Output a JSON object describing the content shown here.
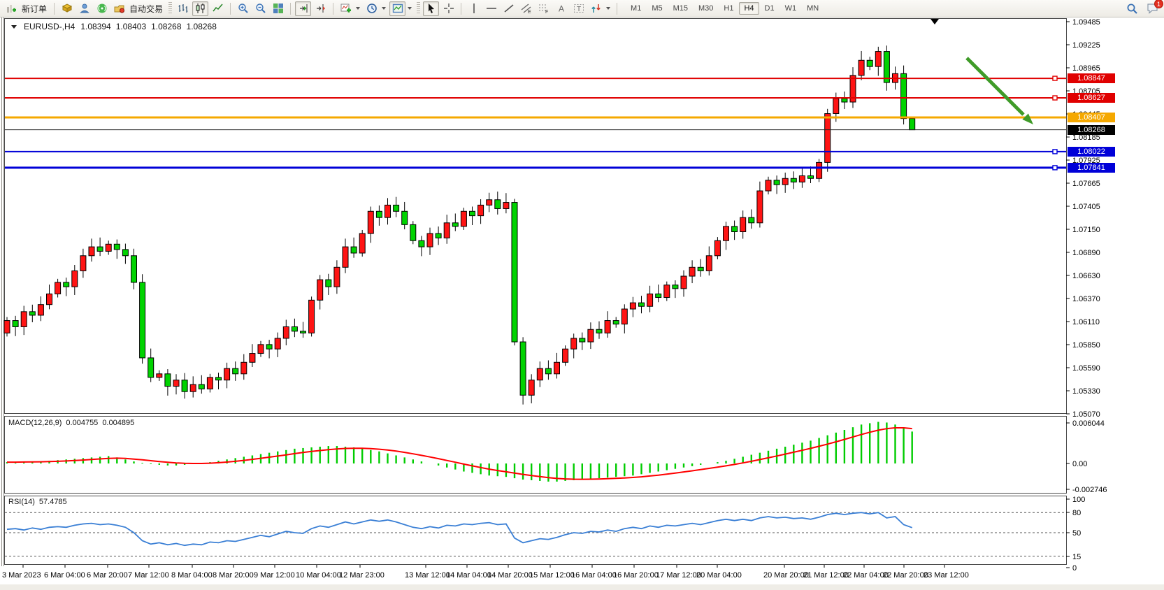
{
  "toolbar": {
    "new_order_label": "新订单",
    "auto_trading_label": "自动交易",
    "tool_letters": {
      "channel": "E",
      "fibonacci": "F",
      "text": "A",
      "label": "T"
    },
    "timeframes": [
      "M1",
      "M5",
      "M15",
      "M30",
      "H1",
      "H4",
      "D1",
      "W1",
      "MN"
    ],
    "selected_timeframe": "H4",
    "chat_badge": "1"
  },
  "chart_header": {
    "symbol_period": "EURUSD-,H4",
    "open": "1.08394",
    "high": "1.08403",
    "low": "1.08268",
    "close": "1.08268"
  },
  "price_axis": {
    "ticks": [
      "1.09485",
      "1.09225",
      "1.08965",
      "1.08705",
      "1.08445",
      "1.08185",
      "1.07925",
      "1.07665",
      "1.07405",
      "1.07150",
      "1.06890",
      "1.06630",
      "1.06370",
      "1.06110",
      "1.05850",
      "1.05590",
      "1.05330",
      "1.05070"
    ]
  },
  "hlines": [
    {
      "price": 1.08847,
      "label": "1.08847",
      "color": "#e00000",
      "width": 2,
      "square": true
    },
    {
      "price": 1.08627,
      "label": "1.08627",
      "color": "#e00000",
      "width": 2,
      "square": true
    },
    {
      "price": 1.08407,
      "label": "1.08407",
      "color": "#f5a800",
      "width": 3,
      "square": false
    },
    {
      "price": 1.08022,
      "label": "1.08022",
      "color": "#0000d8",
      "width": 2,
      "square": true
    },
    {
      "price": 1.07841,
      "label": "1.07841",
      "color": "#0000d8",
      "width": 3,
      "square": true
    }
  ],
  "current_price": {
    "price": 1.08268,
    "label": "1.08268",
    "color": "#000000"
  },
  "macd_panel": {
    "title": "MACD(12,26,9)",
    "value_main": "0.004755",
    "value_signal": "0.004895",
    "axis_labels": [
      "0.006044",
      "0.00",
      "-0.002746"
    ],
    "histogram_color": "#00cc00",
    "signal_color": "#ff0000"
  },
  "rsi_panel": {
    "title": "RSI(14)",
    "value": "57.4785",
    "axis_labels": [
      "100",
      "80",
      "50",
      "15",
      "0"
    ],
    "levels": [
      80,
      50,
      15
    ],
    "line_color": "#3a7fd5"
  },
  "time_axis": [
    "3 Mar 2023",
    "6 Mar 04:00",
    "6 Mar 20:00",
    "7 Mar 12:00",
    "8 Mar 04:00",
    "8 Mar 20:00",
    "9 Mar 12:00",
    "10 Mar 04:00",
    "12 Mar 23:00",
    "13 Mar 12:00",
    "14 Mar 04:00",
    "14 Mar 20:00",
    "15 Mar 12:00",
    "16 Mar 04:00",
    "16 Mar 20:00",
    "17 Mar 12:00",
    "20 Mar 04:00",
    "20 Mar 20:00",
    "21 Mar 12:00",
    "22 Mar 04:00",
    "22 Mar 20:00",
    "23 Mar 12:00"
  ],
  "annotation": {
    "arrow_color": "#3f9b28"
  },
  "colors": {
    "bull_candle": "#ff1414",
    "bear_candle": "#00d300",
    "candle_border": "#000000"
  },
  "chart_data": [
    {
      "type": "candlestick",
      "symbol": "EURUSD-",
      "timeframe": "H4",
      "ylim": [
        1.0507,
        1.09485
      ],
      "first_open": 1.0598,
      "last_ohlc": {
        "open": 1.08394,
        "high": 1.08403,
        "low": 1.08268,
        "close": 1.08268
      },
      "closes": [
        1.0612,
        1.0605,
        1.0622,
        1.0618,
        1.063,
        1.0642,
        1.0655,
        1.065,
        1.0668,
        1.0685,
        1.0695,
        1.069,
        1.0698,
        1.0692,
        1.0685,
        1.0655,
        1.057,
        1.0548,
        1.0552,
        1.0538,
        1.0545,
        1.0532,
        1.054,
        1.0535,
        1.0548,
        1.0545,
        1.0558,
        1.0552,
        1.0565,
        1.0575,
        1.0585,
        1.058,
        1.0592,
        1.0605,
        1.06,
        1.0598,
        1.0635,
        1.0658,
        1.065,
        1.0672,
        1.0695,
        1.0688,
        1.071,
        1.0735,
        1.0728,
        1.0742,
        1.0735,
        1.072,
        1.0702,
        1.0695,
        1.071,
        1.0705,
        1.0722,
        1.0718,
        1.0735,
        1.073,
        1.0742,
        1.0748,
        1.0738,
        1.0745,
        1.0588,
        1.0528,
        1.0545,
        1.0558,
        1.0552,
        1.0565,
        1.058,
        1.0592,
        1.0588,
        1.0602,
        1.0598,
        1.0612,
        1.0608,
        1.0625,
        1.0632,
        1.0628,
        1.0642,
        1.0638,
        1.0652,
        1.0648,
        1.0662,
        1.0672,
        1.0668,
        1.0685,
        1.0702,
        1.0718,
        1.0712,
        1.0728,
        1.0722,
        1.0758,
        1.077,
        1.0765,
        1.0772,
        1.0768,
        1.0775,
        1.0772,
        1.079,
        1.0845,
        1.0862,
        1.0858,
        1.0888,
        1.0905,
        1.0898,
        1.0915,
        1.088,
        1.089,
        1.08394,
        1.08268
      ]
    },
    {
      "type": "bar",
      "name": "MACD(12,26,9) histogram",
      "ylim": [
        -0.0033,
        0.0066
      ],
      "last_main": 0.004755,
      "last_signal": 0.004895,
      "values": [
        0.0002,
        0.0002,
        0.0003,
        0.0003,
        0.0003,
        0.0004,
        0.0005,
        0.0006,
        0.0007,
        0.0008,
        0.0009,
        0.001,
        0.0011,
        0.0009,
        0.0006,
        0.0003,
        0.0001,
        -0.0001,
        -0.0002,
        -0.0003,
        -0.0003,
        -0.0002,
        -0.0001,
        0.0,
        0.0002,
        0.0004,
        0.0006,
        0.0008,
        0.001,
        0.0012,
        0.0014,
        0.0016,
        0.0018,
        0.002,
        0.0022,
        0.0023,
        0.0024,
        0.0025,
        0.0026,
        0.0026,
        0.0025,
        0.0024,
        0.0022,
        0.002,
        0.0018,
        0.0015,
        0.0012,
        0.0009,
        0.0006,
        0.0003,
        0.0,
        -0.0003,
        -0.0006,
        -0.0009,
        -0.0012,
        -0.0014,
        -0.0016,
        -0.0018,
        -0.0019,
        -0.002,
        -0.0022,
        -0.0024,
        -0.0025,
        -0.0026,
        -0.0027,
        -0.0027,
        -0.0026,
        -0.0025,
        -0.0024,
        -0.0023,
        -0.0022,
        -0.0021,
        -0.002,
        -0.0019,
        -0.0018,
        -0.0016,
        -0.0014,
        -0.0012,
        -0.001,
        -0.0008,
        -0.0006,
        -0.0004,
        -0.0002,
        0.0,
        0.0002,
        0.0004,
        0.0007,
        0.001,
        0.0013,
        0.0016,
        0.0019,
        0.0022,
        0.0025,
        0.0028,
        0.0031,
        0.0034,
        0.0038,
        0.0042,
        0.0046,
        0.005,
        0.0054,
        0.0058,
        0.006,
        0.0062,
        0.0061,
        0.0058,
        0.0053,
        0.004755
      ]
    },
    {
      "type": "line",
      "name": "RSI(14)",
      "ylim": [
        0,
        100
      ],
      "levels": [
        80,
        50,
        15
      ],
      "last": 57.4785,
      "values": [
        55,
        56,
        54,
        57,
        55,
        58,
        59,
        58,
        61,
        63,
        64,
        62,
        63,
        61,
        58,
        50,
        38,
        33,
        35,
        32,
        34,
        31,
        33,
        32,
        36,
        35,
        38,
        37,
        40,
        43,
        46,
        44,
        48,
        52,
        50,
        49,
        56,
        60,
        58,
        62,
        66,
        63,
        66,
        69,
        67,
        69,
        66,
        62,
        58,
        56,
        59,
        57,
        61,
        60,
        63,
        62,
        64,
        65,
        62,
        63,
        42,
        35,
        38,
        41,
        40,
        43,
        47,
        50,
        49,
        52,
        51,
        54,
        52,
        56,
        58,
        56,
        60,
        58,
        61,
        60,
        62,
        64,
        62,
        65,
        68,
        70,
        68,
        70,
        68,
        72,
        74,
        72,
        73,
        71,
        72,
        70,
        73,
        77,
        79,
        77,
        79,
        80,
        78,
        80,
        72,
        74,
        62,
        57.4785
      ]
    }
  ]
}
